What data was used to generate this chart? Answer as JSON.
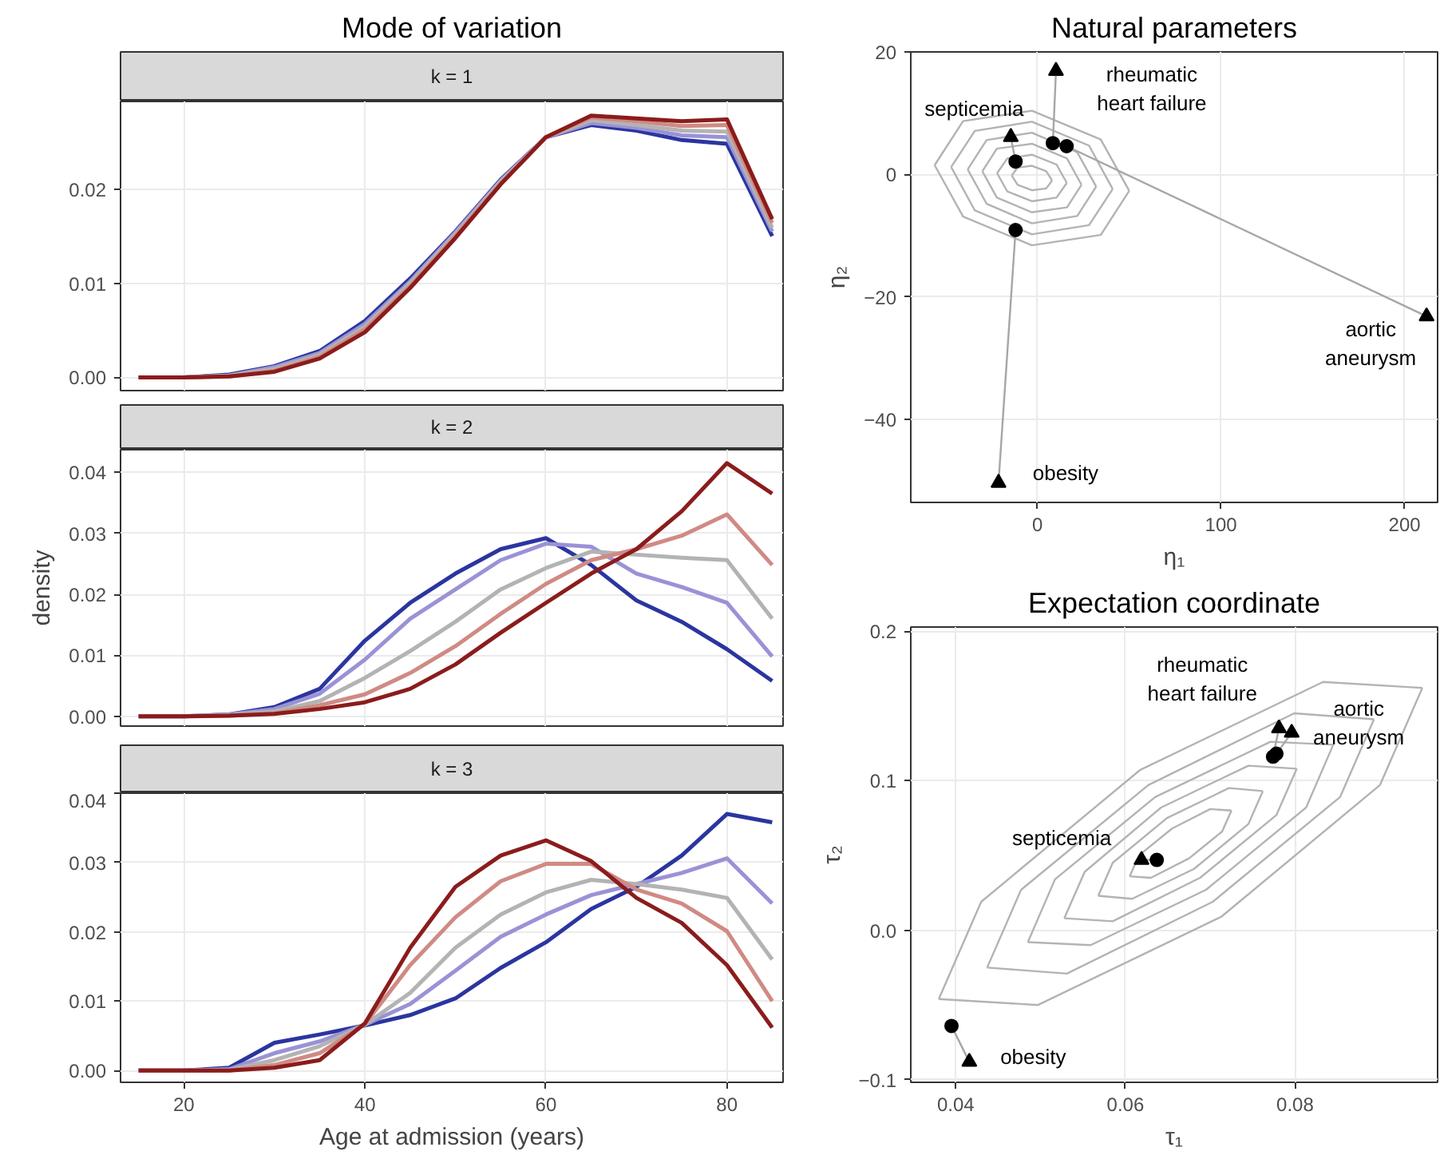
{
  "chart_data": [
    {
      "type": "line",
      "title": "Mode of variation",
      "subtitle": "k = 1",
      "grid": true,
      "tick_labels": "y",
      "x": [
        15,
        20,
        25,
        30,
        35,
        40,
        45,
        50,
        55,
        60,
        65,
        70,
        75,
        80,
        85
      ],
      "xlim": [
        13,
        86.2
      ],
      "xticks": [
        20,
        40,
        60,
        80
      ],
      "ylim": [
        -0.0014,
        0.0293
      ],
      "yticks": [
        {
          "value": 0,
          "label": "0.00"
        },
        {
          "value": 0.01,
          "label": "0.01"
        },
        {
          "value": 0.02,
          "label": "0.02"
        }
      ],
      "series": [
        {
          "color": "#2b35a0",
          "values": [
            0,
            0,
            0.0003,
            0.0012,
            0.0028,
            0.006,
            0.0105,
            0.0155,
            0.021,
            0.0255,
            0.0268,
            0.0262,
            0.0252,
            0.0248,
            0.015
          ]
        },
        {
          "color": "#9a92d6",
          "values": [
            0,
            0,
            0.0002,
            0.0011,
            0.0026,
            0.0057,
            0.0102,
            0.0154,
            0.0209,
            0.0255,
            0.027,
            0.0265,
            0.0257,
            0.0255,
            0.0155
          ]
        },
        {
          "color": "#b3b3b3",
          "values": [
            0,
            0,
            0.0002,
            0.0009,
            0.0024,
            0.0054,
            0.01,
            0.0152,
            0.0208,
            0.0255,
            0.0273,
            0.0268,
            0.0262,
            0.0261,
            0.0159
          ]
        },
        {
          "color": "#d08a84",
          "values": [
            0,
            0,
            0.0001,
            0.0007,
            0.0022,
            0.0051,
            0.0097,
            0.015,
            0.0206,
            0.0255,
            0.0276,
            0.0272,
            0.0267,
            0.0268,
            0.0164
          ]
        },
        {
          "color": "#8b1c1c",
          "values": [
            0,
            0,
            0.0001,
            0.0006,
            0.002,
            0.0048,
            0.0095,
            0.0148,
            0.0205,
            0.0255,
            0.0278,
            0.0275,
            0.0272,
            0.0274,
            0.0168
          ]
        }
      ]
    },
    {
      "type": "line",
      "subtitle": "k = 2",
      "ylabel": "density",
      "grid": true,
      "tick_labels": "y",
      "x": [
        15,
        20,
        25,
        30,
        35,
        40,
        45,
        50,
        55,
        60,
        65,
        70,
        75,
        80,
        85
      ],
      "xlim": [
        13,
        86.2
      ],
      "xticks": [
        20,
        40,
        60,
        80
      ],
      "ylim": [
        -0.0016,
        0.0437
      ],
      "yticks": [
        {
          "value": 0,
          "label": "0.00"
        },
        {
          "value": 0.01,
          "label": "0.01"
        },
        {
          "value": 0.02,
          "label": "0.02"
        },
        {
          "value": 0.03,
          "label": "0.03"
        },
        {
          "value": 0.04,
          "label": "0.04"
        }
      ],
      "series": [
        {
          "color": "#2b35a0",
          "values": [
            0,
            0,
            0.0003,
            0.0015,
            0.0045,
            0.0124,
            0.0186,
            0.0234,
            0.0274,
            0.0292,
            0.0248,
            0.019,
            0.0155,
            0.011,
            0.0058
          ]
        },
        {
          "color": "#9a92d6",
          "values": [
            0,
            0,
            0.0003,
            0.0012,
            0.0037,
            0.0093,
            0.016,
            0.0208,
            0.0256,
            0.0283,
            0.0278,
            0.0234,
            0.0212,
            0.0186,
            0.0098
          ]
        },
        {
          "color": "#b3b3b3",
          "values": [
            0,
            0,
            0.0002,
            0.0008,
            0.0025,
            0.0063,
            0.0107,
            0.0155,
            0.0208,
            0.0243,
            0.027,
            0.0265,
            0.026,
            0.0256,
            0.016
          ]
        },
        {
          "color": "#d08a84",
          "values": [
            0,
            0,
            0.0001,
            0.0005,
            0.0018,
            0.0036,
            0.0071,
            0.0115,
            0.0168,
            0.0217,
            0.0256,
            0.0274,
            0.0296,
            0.0331,
            0.0248
          ]
        },
        {
          "color": "#8b1c1c",
          "values": [
            0,
            0,
            0.0001,
            0.0004,
            0.0012,
            0.0023,
            0.0045,
            0.0085,
            0.0137,
            0.0186,
            0.0234,
            0.0274,
            0.0336,
            0.0415,
            0.0365
          ]
        }
      ]
    },
    {
      "type": "line",
      "subtitle": "k = 3",
      "xlabel": "Age at admission (years)",
      "grid": true,
      "x": [
        15,
        20,
        25,
        30,
        35,
        40,
        45,
        50,
        55,
        60,
        65,
        70,
        75,
        80,
        85
      ],
      "xlim": [
        13,
        86.2
      ],
      "xticks": [
        20,
        40,
        60,
        80
      ],
      "ylim": [
        -0.0017,
        0.04
      ],
      "yticks": [
        {
          "value": 0,
          "label": "0.00"
        },
        {
          "value": 0.01,
          "label": "0.01"
        },
        {
          "value": 0.02,
          "label": "0.02"
        },
        {
          "value": 0.03,
          "label": "0.03"
        },
        {
          "value": 0.04,
          "label": "0.04"
        }
      ],
      "series": [
        {
          "color": "#2b35a0",
          "values": [
            0,
            0,
            0.0004,
            0.004,
            0.0052,
            0.0065,
            0.008,
            0.0104,
            0.0148,
            0.0185,
            0.0233,
            0.0265,
            0.031,
            0.037,
            0.0358
          ]
        },
        {
          "color": "#9a92d6",
          "values": [
            0,
            0,
            0.0002,
            0.0025,
            0.0042,
            0.0066,
            0.0096,
            0.0144,
            0.0193,
            0.0225,
            0.0253,
            0.0269,
            0.0285,
            0.0306,
            0.0241
          ]
        },
        {
          "color": "#b3b3b3",
          "values": [
            0,
            0,
            0.0001,
            0.0015,
            0.0035,
            0.0066,
            0.0112,
            0.0177,
            0.0225,
            0.0257,
            0.0275,
            0.0269,
            0.0261,
            0.0249,
            0.016
          ]
        },
        {
          "color": "#d08a84",
          "values": [
            0,
            0,
            0,
            0.0008,
            0.0025,
            0.0067,
            0.0152,
            0.0221,
            0.0273,
            0.0298,
            0.0298,
            0.0261,
            0.0241,
            0.0201,
            0.01
          ]
        },
        {
          "color": "#8b1c1c",
          "values": [
            0,
            0,
            0,
            0.0004,
            0.0015,
            0.0068,
            0.0177,
            0.0265,
            0.031,
            0.0332,
            0.0302,
            0.0249,
            0.0213,
            0.0152,
            0.0062
          ]
        }
      ]
    },
    {
      "type": "scatter",
      "title": "Natural parameters",
      "xlabel": "η₁",
      "ylabel": "η₂",
      "grid": true,
      "xlim": [
        -69,
        218
      ],
      "xticks": [
        0,
        100,
        200
      ],
      "ylim": [
        -53.6,
        20
      ],
      "yticks": [
        {
          "value": -40,
          "label": "−40"
        },
        {
          "value": -20,
          "label": "−20"
        },
        0,
        20
      ],
      "annotations": [
        {
          "text": "septicemia",
          "x": -14.5,
          "y": 6.1
        },
        {
          "text": "rheumatic\nheart failure",
          "x": 10.1,
          "y": 16.9
        },
        {
          "text": "aortic\naneurysm",
          "x": 212,
          "y": -23.2
        },
        {
          "text": "obesity",
          "x": -21.2,
          "y": -50.4
        }
      ],
      "series": [
        {
          "type": "line",
          "color": "#b3b3b3",
          "x": [
            -56,
            -40.5,
            -3,
            34.5,
            50
          ],
          "values": [
            1.5,
            8.7,
            10.4,
            5.7,
            -2.7
          ]
        },
        {
          "type": "line",
          "color": "#b3b3b3",
          "x": [
            -56,
            -40.5,
            -3,
            34.5,
            50
          ],
          "values": [
            1.5,
            -6.9,
            -11.6,
            -9.9,
            -2.7
          ]
        },
        {
          "type": "line",
          "color": "#b3b3b3",
          "x": [
            -47,
            -34.1,
            -3,
            28.1,
            41
          ],
          "values": [
            1.2,
            7.1,
            8.6,
            4.7,
            -2.4
          ]
        },
        {
          "type": "line",
          "color": "#b3b3b3",
          "x": [
            -47,
            -34.1,
            -3,
            28.1,
            41
          ],
          "values": [
            1.2,
            -5.9,
            -9.8,
            -8.3,
            -2.4
          ]
        },
        {
          "type": "line",
          "color": "#b3b3b3",
          "x": [
            -38,
            -27.7,
            -3,
            21.7,
            32
          ],
          "values": [
            0.8,
            5.6,
            6.8,
            3.6,
            -2.0
          ]
        },
        {
          "type": "line",
          "color": "#b3b3b3",
          "x": [
            -38,
            -27.7,
            -3,
            21.7,
            32
          ],
          "values": [
            0.8,
            -4.8,
            -8.0,
            -6.8,
            -2.0
          ]
        },
        {
          "type": "line",
          "color": "#b3b3b3",
          "x": [
            -30,
            -22.1,
            -3,
            16.1,
            24
          ],
          "values": [
            0.5,
            4.2,
            5.0,
            2.6,
            -1.7
          ]
        },
        {
          "type": "line",
          "color": "#b3b3b3",
          "x": [
            -30,
            -22.1,
            -3,
            16.1,
            24
          ],
          "values": [
            0.5,
            -3.8,
            -6.2,
            -5.4,
            -1.7
          ]
        },
        {
          "type": "line",
          "color": "#b3b3b3",
          "x": [
            -22,
            -16.4,
            -3,
            10.4,
            16
          ],
          "values": [
            0.2,
            2.6,
            3.2,
            1.6,
            -1.4
          ]
        },
        {
          "type": "line",
          "color": "#b3b3b3",
          "x": [
            -22,
            -16.4,
            -3,
            10.4,
            16
          ],
          "values": [
            0.2,
            -2.8,
            -4.4,
            -3.8,
            -1.4
          ]
        },
        {
          "type": "line",
          "color": "#b3b3b3",
          "x": [
            -14,
            -10.8,
            -3,
            4.8,
            8
          ],
          "values": [
            -0.2,
            1.1,
            1.4,
            0.5,
            -1.0
          ]
        },
        {
          "type": "line",
          "color": "#b3b3b3",
          "x": [
            -14,
            -10.8,
            -3,
            4.8,
            8
          ],
          "values": [
            -0.2,
            -1.7,
            -2.6,
            -2.3,
            -1.0
          ]
        },
        {
          "type": "line",
          "color": "#a6a6a6",
          "x": [
            -11.9,
            -14.5
          ],
          "values": [
            2.1,
            6.1
          ]
        },
        {
          "type": "line",
          "color": "#a6a6a6",
          "x": [
            8.4,
            10.1
          ],
          "values": [
            5.1,
            16.9
          ]
        },
        {
          "type": "line",
          "color": "#a6a6a6",
          "x": [
            15.9,
            212
          ],
          "values": [
            4.6,
            -23.2
          ]
        },
        {
          "type": "line",
          "color": "#a6a6a6",
          "x": [
            -11.9,
            -21.2
          ],
          "values": [
            -9.1,
            -50.4
          ]
        },
        {
          "type": "scatter",
          "marker": "circle",
          "color": "#000000",
          "x": [
            -11.9,
            8.4,
            15.9,
            -11.9
          ],
          "values": [
            2.1,
            5.1,
            4.6,
            -9.1
          ]
        },
        {
          "type": "scatter",
          "marker": "triangle",
          "color": "#000000",
          "x": [
            -14.5,
            10.1,
            212,
            -21.2
          ],
          "values": [
            6.1,
            16.9,
            -23.2,
            -50.4
          ]
        }
      ]
    },
    {
      "type": "scatter",
      "title": "Expectation coordinate",
      "xlabel": "τ₁",
      "ylabel": "τ₂",
      "grid": true,
      "xlim": [
        0.0347,
        0.0968
      ],
      "xticks": [
        0.04,
        0.06,
        0.08
      ],
      "ylim": [
        -0.1017,
        0.2027
      ],
      "yticks": [
        {
          "value": -0.1,
          "label": "−0.1"
        },
        {
          "value": 0,
          "label": "0.0"
        },
        0.1,
        0.2
      ],
      "annotations": [
        {
          "text": "septicemia",
          "x": 0.0619,
          "y": 0.047
        },
        {
          "text": "rheumatic\nheart failure",
          "x": 0.0781,
          "y": 0.135
        },
        {
          "text": "aortic\naneurysm",
          "x": 0.0796,
          "y": 0.132
        },
        {
          "text": "obesity",
          "x": 0.0416,
          "y": -0.088
        }
      ],
      "series": [
        {
          "type": "line",
          "color": "#b3b3b3",
          "x": [
            0.038,
            0.043,
            0.0617,
            0.0833,
            0.095
          ],
          "values": [
            -0.046,
            0.019,
            0.107,
            0.166,
            0.162
          ]
        },
        {
          "type": "line",
          "color": "#b3b3b3",
          "x": [
            0.038,
            0.0497,
            0.0713,
            0.09,
            0.095
          ],
          "values": [
            -0.046,
            -0.05,
            0.009,
            0.097,
            0.162
          ]
        },
        {
          "type": "line",
          "color": "#b3b3b3",
          "x": [
            0.0437,
            0.0477,
            0.0627,
            0.0799,
            0.0893
          ],
          "values": [
            -0.025,
            0.027,
            0.097,
            0.145,
            0.141
          ]
        },
        {
          "type": "line",
          "color": "#b3b3b3",
          "x": [
            0.0437,
            0.0531,
            0.0703,
            0.0853,
            0.0893
          ],
          "values": [
            -0.025,
            -0.029,
            0.019,
            0.089,
            0.141
          ]
        },
        {
          "type": "line",
          "color": "#b3b3b3",
          "x": [
            0.0485,
            0.0517,
            0.0635,
            0.0771,
            0.0845
          ],
          "values": [
            -0.008,
            0.034,
            0.089,
            0.126,
            0.124
          ]
        },
        {
          "type": "line",
          "color": "#b3b3b3",
          "x": [
            0.0485,
            0.0559,
            0.0695,
            0.0813,
            0.0845
          ],
          "values": [
            -0.008,
            -0.01,
            0.027,
            0.082,
            0.124
          ]
        },
        {
          "type": "line",
          "color": "#b3b3b3",
          "x": [
            0.0528,
            0.0552,
            0.0642,
            0.0745,
            0.0802
          ],
          "values": [
            0.008,
            0.039,
            0.082,
            0.11,
            0.108
          ]
        },
        {
          "type": "line",
          "color": "#b3b3b3",
          "x": [
            0.0528,
            0.0585,
            0.0688,
            0.0778,
            0.0802
          ],
          "values": [
            0.008,
            0.006,
            0.035,
            0.077,
            0.108
          ]
        },
        {
          "type": "line",
          "color": "#b3b3b3",
          "x": [
            0.0568,
            0.0585,
            0.0649,
            0.0722,
            0.0762
          ],
          "values": [
            0.023,
            0.045,
            0.075,
            0.095,
            0.093
          ]
        },
        {
          "type": "line",
          "color": "#b3b3b3",
          "x": [
            0.0568,
            0.0608,
            0.0681,
            0.0745,
            0.0762
          ],
          "values": [
            0.023,
            0.021,
            0.041,
            0.071,
            0.093
          ]
        },
        {
          "type": "line",
          "color": "#b3b3b3",
          "x": [
            0.0605,
            0.0616,
            0.0655,
            0.07,
            0.0725
          ],
          "values": [
            0.036,
            0.05,
            0.068,
            0.081,
            0.08
          ]
        },
        {
          "type": "line",
          "color": "#b3b3b3",
          "x": [
            0.0605,
            0.063,
            0.0675,
            0.0714,
            0.0725
          ],
          "values": [
            0.036,
            0.035,
            0.048,
            0.066,
            0.08
          ]
        },
        {
          "type": "line",
          "color": "#a6a6a6",
          "x": [
            0.0395,
            0.0416
          ],
          "values": [
            -0.064,
            -0.088
          ]
        },
        {
          "type": "line",
          "color": "#a6a6a6",
          "x": [
            0.0637,
            0.0619
          ],
          "values": [
            0.047,
            0.047
          ]
        },
        {
          "type": "line",
          "color": "#a6a6a6",
          "x": [
            0.0774,
            0.0781
          ],
          "values": [
            0.116,
            0.135
          ]
        },
        {
          "type": "line",
          "color": "#a6a6a6",
          "x": [
            0.0778,
            0.0796
          ],
          "values": [
            0.118,
            0.132
          ]
        },
        {
          "type": "scatter",
          "marker": "circle",
          "color": "#000000",
          "x": [
            0.0395,
            0.0637,
            0.0774,
            0.0778
          ],
          "values": [
            -0.064,
            0.047,
            0.116,
            0.118
          ]
        },
        {
          "type": "scatter",
          "marker": "triangle",
          "color": "#000000",
          "x": [
            0.0416,
            0.0619,
            0.0781,
            0.0796
          ],
          "values": [
            -0.088,
            0.047,
            0.135,
            0.132
          ]
        }
      ]
    }
  ]
}
